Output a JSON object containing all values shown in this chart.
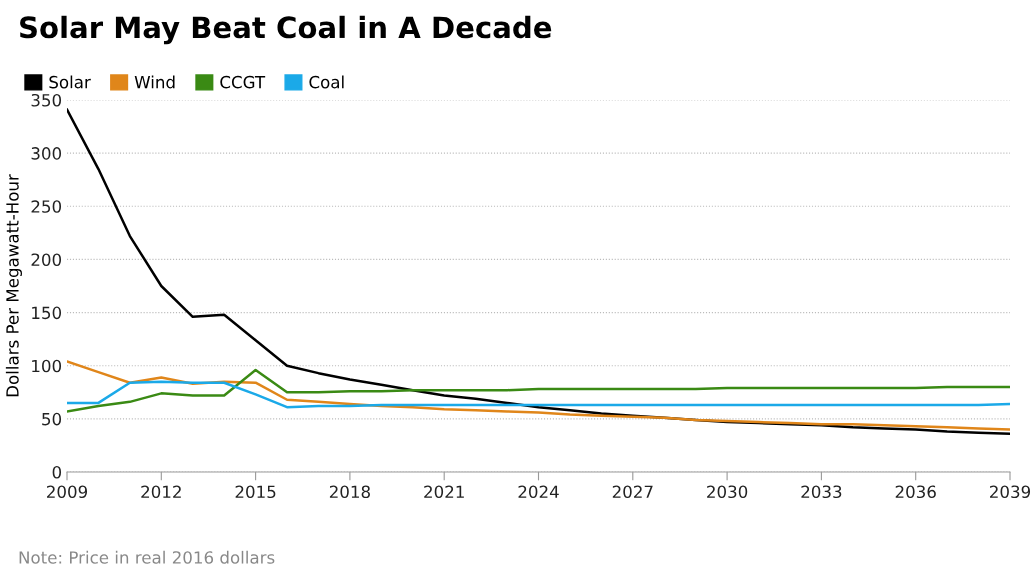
{
  "chart_data": {
    "type": "line",
    "title": "Solar May Beat Coal in A Decade",
    "ylabel": "Dollars Per Megawatt-Hour",
    "x": [
      2009,
      2010,
      2011,
      2012,
      2013,
      2014,
      2015,
      2016,
      2017,
      2018,
      2019,
      2020,
      2021,
      2022,
      2023,
      2024,
      2025,
      2026,
      2027,
      2028,
      2029,
      2030,
      2031,
      2032,
      2033,
      2034,
      2035,
      2036,
      2037,
      2038,
      2039
    ],
    "series": [
      {
        "name": "Solar",
        "color": "#000000",
        "values": [
          341,
          285,
          222,
          175,
          146,
          148,
          124,
          100,
          93,
          87,
          82,
          77,
          72,
          69,
          65,
          61,
          58,
          55,
          53,
          51,
          49,
          47,
          46,
          45,
          44,
          42,
          41,
          40,
          38,
          37,
          36
        ]
      },
      {
        "name": "Wind",
        "color": "#e0861a",
        "values": [
          104,
          94,
          84,
          89,
          83,
          85,
          84,
          68,
          66,
          64,
          62,
          61,
          59,
          58,
          57,
          56,
          54,
          53,
          52,
          51,
          49,
          48,
          47,
          46,
          45,
          45,
          44,
          43,
          42,
          41,
          40
        ]
      },
      {
        "name": "CCGT",
        "color": "#3a8a14",
        "values": [
          57,
          62,
          66,
          74,
          72,
          72,
          96,
          75,
          75,
          76,
          76,
          77,
          77,
          77,
          77,
          78,
          78,
          78,
          78,
          78,
          78,
          79,
          79,
          79,
          79,
          79,
          79,
          79,
          80,
          80,
          80
        ]
      },
      {
        "name": "Coal",
        "color": "#1ba9e8",
        "values": [
          65,
          65,
          84,
          85,
          84,
          84,
          73,
          61,
          62,
          62,
          63,
          63,
          63,
          63,
          63,
          63,
          63,
          63,
          63,
          63,
          63,
          63,
          63,
          63,
          63,
          63,
          63,
          63,
          63,
          63,
          64
        ]
      }
    ],
    "xlim": [
      2009,
      2039
    ],
    "xticks": [
      2009,
      2012,
      2015,
      2018,
      2021,
      2024,
      2027,
      2030,
      2033,
      2036,
      2039
    ],
    "ylim": [
      0,
      350
    ],
    "yticks": [
      0,
      50,
      100,
      150,
      200,
      250,
      300,
      350
    ],
    "grid": "y",
    "legend": "top left",
    "marker": "none",
    "line_style": "solid",
    "annotations": [
      "Note: Price in real 2016 dollars"
    ]
  }
}
